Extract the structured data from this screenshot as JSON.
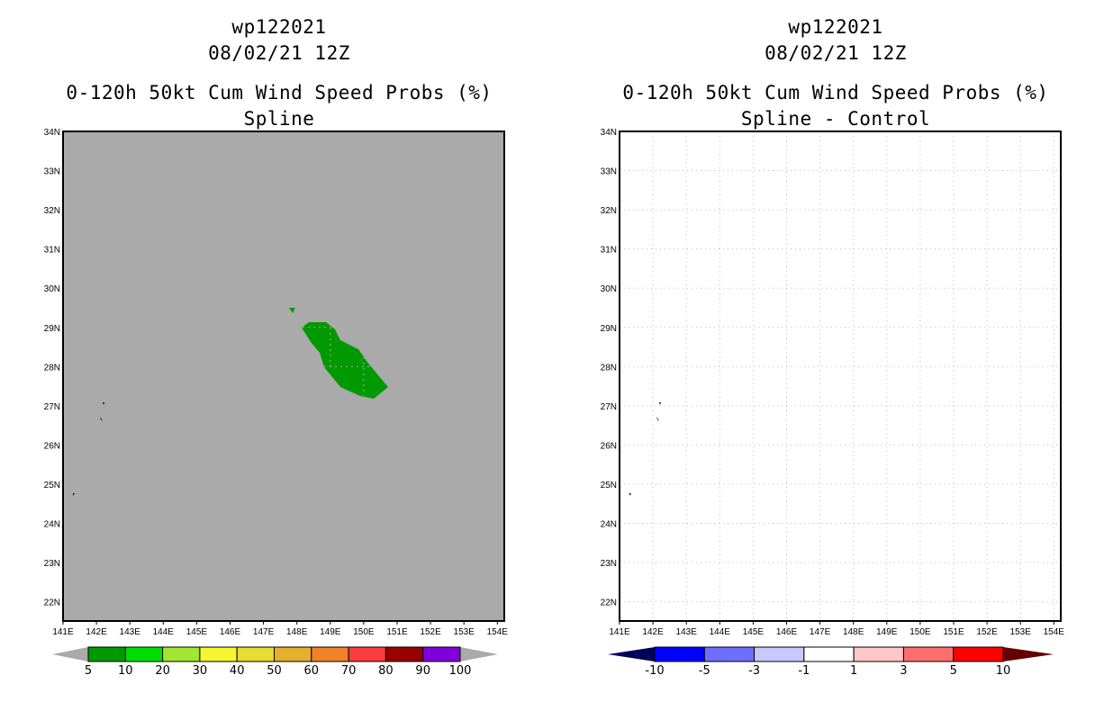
{
  "panels": [
    {
      "storm": "wp122021",
      "datetime": "08/02/21 12Z",
      "title": "0-120h 50kt Cum Wind Speed Probs (%)",
      "subtitle": "Spline",
      "background": "#aaaaaa",
      "colorbar": {
        "labels": [
          "5",
          "10",
          "20",
          "30",
          "40",
          "50",
          "60",
          "70",
          "80",
          "90",
          "100"
        ],
        "colors": [
          "#009900",
          "#00dd00",
          "#a0e632",
          "#f5f532",
          "#e6dc32",
          "#e6af2d",
          "#f08228",
          "#fa3c3c",
          "#990000",
          "#8200dc"
        ],
        "under_color": "#aaaaaa",
        "over_color": "#aaaaaa"
      }
    },
    {
      "storm": "wp122021",
      "datetime": "08/02/21 12Z",
      "title": "0-120h 50kt Cum Wind Speed Probs (%)",
      "subtitle": "Spline - Control",
      "background": "#ffffff",
      "colorbar": {
        "labels": [
          "-10",
          "-5",
          "-3",
          "-1",
          "1",
          "3",
          "5",
          "10"
        ],
        "colors": [
          "#0000ff",
          "#6e6eff",
          "#c8c8ff",
          "#ffffff",
          "#ffc8c8",
          "#ff6e6e",
          "#ff0000"
        ],
        "under_color": "#00005a",
        "over_color": "#640000"
      }
    }
  ],
  "axes": {
    "lat_labels": [
      "22N",
      "23N",
      "24N",
      "25N",
      "26N",
      "27N",
      "28N",
      "29N",
      "30N",
      "31N",
      "32N",
      "33N",
      "34N"
    ],
    "lon_labels": [
      "141E",
      "142E",
      "143E",
      "144E",
      "145E",
      "146E",
      "147E",
      "148E",
      "149E",
      "150E",
      "151E",
      "152E",
      "153E",
      "154E"
    ]
  },
  "probability_area": {
    "category": "5-10",
    "color": "#009900"
  }
}
